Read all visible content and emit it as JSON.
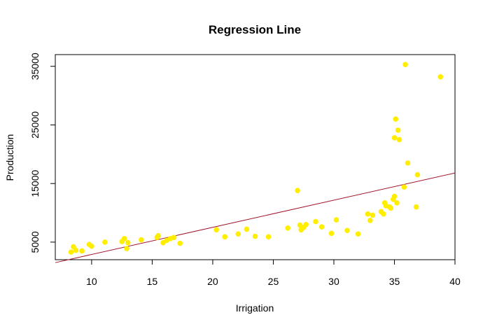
{
  "chart_data": {
    "type": "scatter",
    "title": "Regression Line",
    "xlabel": "Irrigation",
    "ylabel": "Production",
    "xlim": [
      7,
      40
    ],
    "ylim": [
      2000,
      37000
    ],
    "xticks": [
      10,
      15,
      20,
      25,
      30,
      35,
      40
    ],
    "yticks": [
      5000,
      15000,
      25000,
      35000
    ],
    "xtick_labels": [
      "10",
      "15",
      "20",
      "25",
      "30",
      "35",
      "40"
    ],
    "ytick_labels": [
      "5000",
      "15000",
      "25000",
      "35000"
    ],
    "grid": false,
    "legend": "none",
    "point_color": "#ffee00",
    "line_color": "#a0162b",
    "points": [
      {
        "x": 8.3,
        "y": 3300
      },
      {
        "x": 8.5,
        "y": 4200
      },
      {
        "x": 8.7,
        "y": 3600
      },
      {
        "x": 9.2,
        "y": 3500
      },
      {
        "x": 9.8,
        "y": 4600
      },
      {
        "x": 10.0,
        "y": 4300
      },
      {
        "x": 11.1,
        "y": 5000
      },
      {
        "x": 12.5,
        "y": 5100
      },
      {
        "x": 12.7,
        "y": 5600
      },
      {
        "x": 12.9,
        "y": 3900
      },
      {
        "x": 13.0,
        "y": 4900
      },
      {
        "x": 14.1,
        "y": 5400
      },
      {
        "x": 15.4,
        "y": 5800
      },
      {
        "x": 15.5,
        "y": 6100
      },
      {
        "x": 15.9,
        "y": 4900
      },
      {
        "x": 16.2,
        "y": 5300
      },
      {
        "x": 16.5,
        "y": 5600
      },
      {
        "x": 16.8,
        "y": 5800
      },
      {
        "x": 17.3,
        "y": 4800
      },
      {
        "x": 20.3,
        "y": 7100
      },
      {
        "x": 21.0,
        "y": 5900
      },
      {
        "x": 22.1,
        "y": 6400
      },
      {
        "x": 22.8,
        "y": 7200
      },
      {
        "x": 23.5,
        "y": 6000
      },
      {
        "x": 24.6,
        "y": 5900
      },
      {
        "x": 26.2,
        "y": 7400
      },
      {
        "x": 27.0,
        "y": 13800
      },
      {
        "x": 27.2,
        "y": 7900
      },
      {
        "x": 27.3,
        "y": 7100
      },
      {
        "x": 27.5,
        "y": 7500
      },
      {
        "x": 27.7,
        "y": 8000
      },
      {
        "x": 28.5,
        "y": 8500
      },
      {
        "x": 29.0,
        "y": 7600
      },
      {
        "x": 29.8,
        "y": 6500
      },
      {
        "x": 30.2,
        "y": 8800
      },
      {
        "x": 31.1,
        "y": 7000
      },
      {
        "x": 32.0,
        "y": 6400
      },
      {
        "x": 32.8,
        "y": 9800
      },
      {
        "x": 33.0,
        "y": 8700
      },
      {
        "x": 33.2,
        "y": 9600
      },
      {
        "x": 33.9,
        "y": 10200
      },
      {
        "x": 34.1,
        "y": 9800
      },
      {
        "x": 34.2,
        "y": 11700
      },
      {
        "x": 34.3,
        "y": 11200
      },
      {
        "x": 34.6,
        "y": 11000
      },
      {
        "x": 34.7,
        "y": 10800
      },
      {
        "x": 34.9,
        "y": 12300
      },
      {
        "x": 35.0,
        "y": 12800
      },
      {
        "x": 35.0,
        "y": 22800
      },
      {
        "x": 35.1,
        "y": 26000
      },
      {
        "x": 35.2,
        "y": 11700
      },
      {
        "x": 35.3,
        "y": 24100
      },
      {
        "x": 35.4,
        "y": 22500
      },
      {
        "x": 35.8,
        "y": 14400
      },
      {
        "x": 35.9,
        "y": 35300
      },
      {
        "x": 36.1,
        "y": 18500
      },
      {
        "x": 36.8,
        "y": 11000
      },
      {
        "x": 36.9,
        "y": 16500
      },
      {
        "x": 38.8,
        "y": 33200
      }
    ],
    "regression_line": [
      {
        "x": 7,
        "y": 1500
      },
      {
        "x": 40,
        "y": 16800
      }
    ]
  }
}
